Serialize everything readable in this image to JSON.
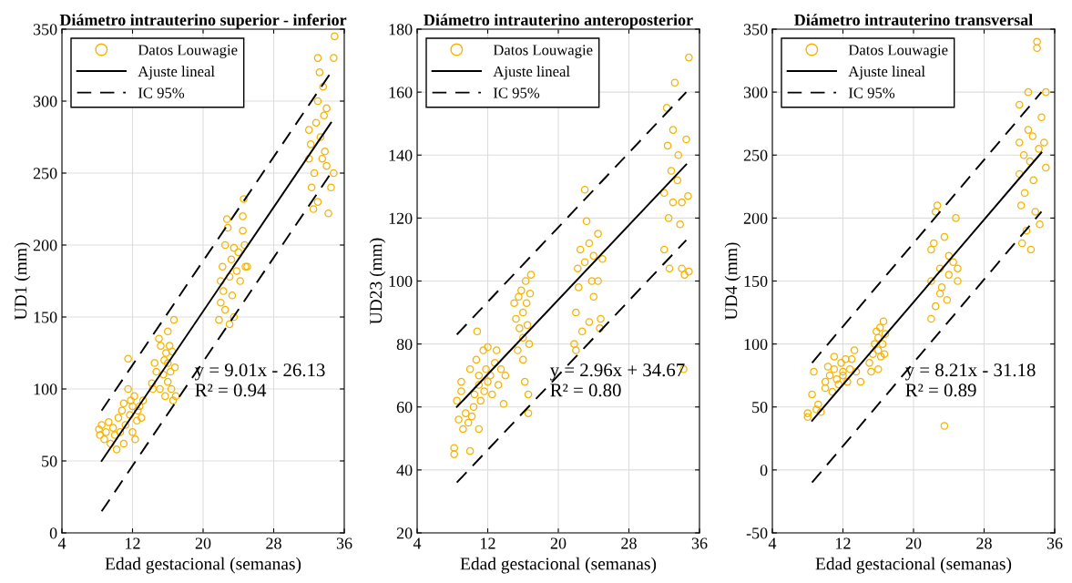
{
  "chart_data": [
    {
      "type": "scatter",
      "title": "Diámetro intrauterino superior - inferior",
      "xlabel": "Edad gestacional (semanas)",
      "ylabel": "UD1 (mm)",
      "xlim": [
        4,
        36
      ],
      "xticks": [
        4,
        12,
        20,
        28,
        36
      ],
      "ylim": [
        0,
        350
      ],
      "yticks": [
        0,
        50,
        100,
        150,
        200,
        250,
        300,
        350
      ],
      "grid": true,
      "legend": "top left",
      "annotations": [
        "y = 9.01x - 26.13",
        "R² = 0.94"
      ],
      "series": [
        {
          "name": "Datos Louwagie",
          "color": "#f5b400",
          "marker": "circle",
          "x": [
            8.2,
            8.3,
            8.5,
            8.8,
            9,
            9.3,
            9.5,
            9.8,
            10,
            10.2,
            10.4,
            10.6,
            10.8,
            11,
            11,
            11.2,
            11.5,
            11.5,
            11.7,
            11.8,
            12,
            12,
            12.2,
            12.3,
            12.5,
            12.6,
            12.8,
            13,
            13.2,
            14.2,
            14.3,
            14.5,
            14.7,
            15,
            15.2,
            15.1,
            15.5,
            15.6,
            15.7,
            15.8,
            16,
            16,
            16,
            16.2,
            16.3,
            16.4,
            16.5,
            16.6,
            16.7,
            16.8,
            16.9,
            21.8,
            22,
            22,
            22.2,
            22.3,
            22.5,
            22.5,
            22.7,
            22.8,
            23,
            23,
            23.2,
            23.3,
            23.5,
            23.5,
            23.8,
            24,
            24.2,
            24.5,
            24.5,
            24.6,
            24.7,
            24.8,
            25,
            32,
            32,
            32.2,
            32.3,
            32.5,
            32.6,
            32.8,
            33,
            33,
            33,
            33.2,
            33.3,
            33.5,
            33.6,
            33.7,
            33.8,
            34,
            34,
            34.5,
            34.8,
            34.8,
            34.9,
            34.2
          ],
          "values": [
            72,
            68,
            75,
            65,
            70,
            77,
            62,
            73,
            68,
            58,
            80,
            70,
            85,
            62,
            90,
            75,
            121,
            100,
            82,
            92,
            70,
            88,
            95,
            65,
            78,
            85,
            88,
            80,
            92,
            104,
            100,
            118,
            112,
            135,
            130,
            100,
            110,
            120,
            95,
            125,
            140,
            118,
            105,
            130,
            112,
            100,
            126,
            92,
            148,
            115,
            95,
            148,
            160,
            175,
            185,
            168,
            200,
            155,
            218,
            212,
            178,
            145,
            190,
            165,
            198,
            150,
            182,
            195,
            175,
            210,
            220,
            232,
            200,
            185,
            185,
            280,
            260,
            270,
            240,
            225,
            250,
            285,
            230,
            300,
            330,
            320,
            275,
            260,
            310,
            290,
            265,
            255,
            295,
            240,
            250,
            330,
            345,
            222
          ]
        },
        {
          "name": "Ajuste lineal",
          "color": "#000000",
          "type": "line",
          "line_style": "solid",
          "x": [
            8.5,
            34.5
          ],
          "values": [
            50,
            285
          ]
        },
        {
          "name": "IC 95%",
          "color": "#000000",
          "type": "line",
          "line_style": "dashed",
          "x": [
            8.5,
            34.5
          ],
          "values": [
            85,
            320
          ]
        },
        {
          "color": "#000000",
          "type": "line",
          "line_style": "dashed",
          "x": [
            8.5,
            34.5
          ],
          "values": [
            15,
            250
          ]
        }
      ]
    },
    {
      "type": "scatter",
      "title": "Diámetro intrauterino anteroposterior",
      "xlabel": "Edad gestacional (semanas)",
      "ylabel": "UD23 (mm)",
      "xlim": [
        4,
        36
      ],
      "xticks": [
        4,
        12,
        20,
        28,
        36
      ],
      "ylim": [
        20,
        180
      ],
      "yticks": [
        20,
        40,
        60,
        80,
        100,
        120,
        140,
        160,
        180
      ],
      "grid": true,
      "legend": "top left",
      "annotations": [
        "y = 2.96x + 34.67",
        "R² = 0.80"
      ],
      "series": [
        {
          "name": "Datos Louwagie",
          "color": "#f5b400",
          "marker": "circle",
          "x": [
            8.2,
            8.2,
            8.5,
            8.7,
            9,
            9,
            9.2,
            9.5,
            9.8,
            10,
            10,
            10.2,
            10.4,
            10.5,
            10.7,
            10.8,
            11,
            11,
            11,
            11.2,
            11.5,
            11.6,
            11.8,
            12,
            12,
            12.3,
            12.5,
            12.8,
            13,
            13.2,
            13.5,
            13.8,
            14,
            15,
            15.2,
            15.4,
            15.5,
            15.6,
            15.8,
            16,
            16,
            16,
            16.2,
            16.3,
            16.4,
            16.5,
            16.6,
            16.6,
            16.7,
            16.8,
            16.9,
            21.8,
            22,
            22,
            22.2,
            22.3,
            22.5,
            22.7,
            23,
            23,
            23.2,
            23.5,
            23.5,
            23.8,
            24,
            24,
            24.5,
            24.5,
            24.7,
            24.8,
            25,
            32,
            32,
            32.3,
            32.4,
            32.5,
            32.6,
            32.8,
            33,
            33,
            33.2,
            33.5,
            33.6,
            33.8,
            34,
            34,
            34.2,
            34.3,
            34.5,
            34.8,
            34.8,
            34.7
          ],
          "values": [
            47,
            45,
            62,
            56,
            65,
            68,
            53,
            58,
            55,
            46,
            72,
            57,
            60,
            64,
            75,
            84,
            67,
            70,
            53,
            62,
            78,
            65,
            72,
            68,
            79,
            70,
            64,
            74,
            78,
            67,
            72,
            61,
            70,
            93,
            88,
            78,
            95,
            85,
            97,
            90,
            82,
            75,
            68,
            100,
            93,
            86,
            58,
            64,
            80,
            96,
            102,
            80,
            78,
            90,
            104,
            98,
            110,
            84,
            129,
            106,
            119,
            112,
            87,
            100,
            95,
            108,
            115,
            100,
            85,
            88,
            107,
            128,
            110,
            155,
            143,
            120,
            104,
            135,
            125,
            148,
            163,
            132,
            140,
            118,
            125,
            104,
            72,
            102,
            145,
            171,
            103,
            127
          ]
        },
        {
          "name": "Ajuste lineal",
          "color": "#000000",
          "type": "line",
          "line_style": "solid",
          "x": [
            8.5,
            34.5
          ],
          "values": [
            60,
            137
          ]
        },
        {
          "name": "IC 95%",
          "color": "#000000",
          "type": "line",
          "line_style": "dashed",
          "x": [
            8.5,
            34.5
          ],
          "values": [
            83,
            160
          ]
        },
        {
          "color": "#000000",
          "type": "line",
          "line_style": "dashed",
          "x": [
            8.5,
            34.5
          ],
          "values": [
            36,
            113
          ]
        }
      ]
    },
    {
      "type": "scatter",
      "title": "Diámetro intrauterino transversal",
      "xlabel": "Edad gestacional (semanas)",
      "ylabel": "UD4 (mm)",
      "xlim": [
        4,
        36
      ],
      "xticks": [
        4,
        12,
        20,
        28,
        36
      ],
      "ylim": [
        -50,
        350
      ],
      "yticks": [
        -50,
        0,
        50,
        100,
        150,
        200,
        250,
        300,
        350
      ],
      "grid": true,
      "legend": "top left",
      "annotations": [
        "y = 8.21x - 31.18",
        "R² = 0.89"
      ],
      "series": [
        {
          "name": "Datos Louwagie",
          "color": "#f5b400",
          "marker": "circle",
          "x": [
            8,
            8,
            8.5,
            8.7,
            9,
            9.2,
            9.5,
            10,
            10,
            10.3,
            10.5,
            10.8,
            11,
            11,
            11.3,
            11.5,
            11.8,
            12,
            12,
            12.3,
            12.5,
            12.8,
            13,
            13.3,
            13.5,
            14,
            15,
            15.2,
            15.4,
            15.6,
            15.8,
            16,
            16,
            16,
            16.2,
            16.3,
            16.5,
            16.6,
            16.7,
            16.8,
            22,
            22,
            22,
            22.3,
            22.5,
            22.5,
            22.7,
            23,
            23,
            23.2,
            23.5,
            23.5,
            23.8,
            24,
            24,
            24.5,
            24.8,
            25,
            25,
            32,
            32,
            32,
            32.2,
            32.3,
            32.5,
            32.6,
            32.8,
            33,
            33,
            33.2,
            33.3,
            33.5,
            33.6,
            33.8,
            34,
            34,
            34.2,
            34.3,
            34.5,
            34.8,
            35,
            35
          ],
          "values": [
            45,
            42,
            60,
            78,
            48,
            52,
            46,
            65,
            70,
            82,
            75,
            62,
            80,
            90,
            72,
            68,
            85,
            75,
            78,
            88,
            70,
            80,
            88,
            95,
            78,
            70,
            85,
            78,
            92,
            100,
            110,
            105,
            95,
            80,
            113,
            90,
            100,
            118,
            92,
            108,
            175,
            150,
            120,
            180,
            130,
            205,
            210,
            160,
            140,
            145,
            185,
            35,
            135,
            155,
            170,
            165,
            200,
            150,
            160,
            290,
            260,
            235,
            210,
            180,
            250,
            220,
            190,
            300,
            270,
            245,
            175,
            265,
            230,
            205,
            340,
            335,
            255,
            195,
            280,
            260,
            300,
            240
          ]
        },
        {
          "name": "Ajuste lineal",
          "color": "#000000",
          "type": "line",
          "line_style": "solid",
          "x": [
            8.5,
            34.5
          ],
          "values": [
            39,
            252
          ]
        },
        {
          "name": "IC 95%",
          "color": "#000000",
          "type": "line",
          "line_style": "dashed",
          "x": [
            8.5,
            34.5
          ],
          "values": [
            85,
            300
          ]
        },
        {
          "color": "#000000",
          "type": "line",
          "line_style": "dashed",
          "x": [
            8.5,
            34.5
          ],
          "values": [
            -10,
            205
          ]
        }
      ]
    }
  ]
}
